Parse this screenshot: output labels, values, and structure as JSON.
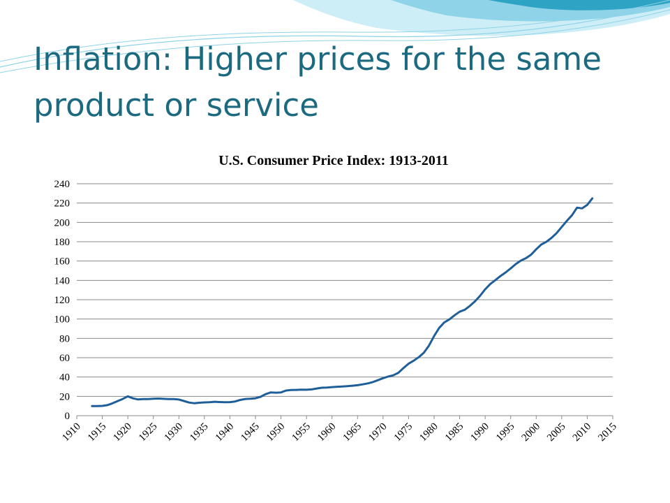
{
  "slide": {
    "title": "Inflation: Higher prices for the same product or service"
  },
  "colors": {
    "title": "#1b6a80",
    "line": "#1f5f99",
    "grid": "#8a8a8a",
    "wave_light": "#cdeef6",
    "wave_mid": "#8fd3e8",
    "wave_dark": "#2ea3c4"
  },
  "chart_data": {
    "type": "line",
    "title": "U.S. Consumer Price Index: 1913-2011",
    "xlabel": "",
    "ylabel": "",
    "xlim": [
      1910,
      2015
    ],
    "ylim": [
      0,
      240
    ],
    "x_ticks": [
      1910,
      1915,
      1920,
      1925,
      1930,
      1935,
      1940,
      1945,
      1950,
      1955,
      1960,
      1965,
      1970,
      1975,
      1980,
      1985,
      1990,
      1995,
      2000,
      2005,
      2010,
      2015
    ],
    "y_ticks": [
      0,
      20,
      40,
      60,
      80,
      100,
      120,
      140,
      160,
      180,
      200,
      220,
      240
    ],
    "grid": true,
    "legend": "none",
    "series": [
      {
        "x": [
          1913,
          1914,
          1915,
          1916,
          1917,
          1918,
          1919,
          1920,
          1921,
          1922,
          1923,
          1924,
          1925,
          1926,
          1927,
          1928,
          1929,
          1930,
          1931,
          1932,
          1933,
          1934,
          1935,
          1936,
          1937,
          1938,
          1939,
          1940,
          1941,
          1942,
          1943,
          1944,
          1945,
          1946,
          1947,
          1948,
          1949,
          1950,
          1951,
          1952,
          1953,
          1954,
          1955,
          1956,
          1957,
          1958,
          1959,
          1960,
          1961,
          1962,
          1963,
          1964,
          1965,
          1966,
          1967,
          1968,
          1969,
          1970,
          1971,
          1972,
          1973,
          1974,
          1975,
          1976,
          1977,
          1978,
          1979,
          1980,
          1981,
          1982,
          1983,
          1984,
          1985,
          1986,
          1987,
          1988,
          1989,
          1990,
          1991,
          1992,
          1993,
          1994,
          1995,
          1996,
          1997,
          1998,
          1999,
          2000,
          2001,
          2002,
          2003,
          2004,
          2005,
          2006,
          2007,
          2008,
          2009,
          2010,
          2011
        ],
        "values": [
          9.9,
          10.0,
          10.1,
          10.9,
          12.8,
          15.1,
          17.3,
          20.0,
          17.9,
          16.8,
          17.1,
          17.1,
          17.5,
          17.7,
          17.4,
          17.1,
          17.1,
          16.7,
          15.2,
          13.6,
          12.9,
          13.4,
          13.7,
          13.9,
          14.4,
          14.1,
          13.9,
          14.0,
          14.7,
          16.3,
          17.3,
          17.6,
          18.0,
          19.5,
          22.3,
          24.1,
          23.8,
          24.1,
          26.0,
          26.5,
          26.7,
          26.9,
          26.8,
          27.2,
          28.1,
          28.9,
          29.1,
          29.6,
          29.9,
          30.2,
          30.6,
          31.0,
          31.5,
          32.4,
          33.4,
          34.8,
          36.7,
          38.8,
          40.5,
          41.8,
          44.4,
          49.3,
          53.8,
          56.9,
          60.6,
          65.2,
          72.6,
          82.4,
          90.9,
          96.5,
          99.6,
          103.9,
          107.6,
          109.6,
          113.6,
          118.3,
          124.0,
          130.7,
          136.2,
          140.3,
          144.5,
          148.2,
          152.4,
          156.9,
          160.5,
          163.0,
          166.6,
          172.2,
          177.1,
          179.9,
          184.0,
          188.9,
          195.3,
          201.6,
          207.3,
          215.3,
          214.5,
          218.1,
          224.9
        ]
      }
    ]
  }
}
